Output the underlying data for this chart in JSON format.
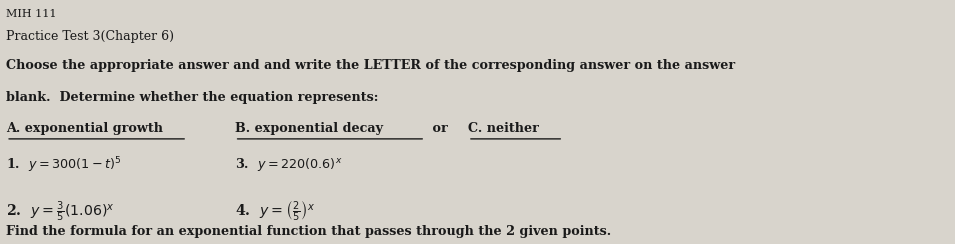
{
  "background_color": "#d8d4cc",
  "title_line": "MIH 111",
  "line1": "Practice Test 3(Chapter 6)",
  "line2a": "Choose the appropriate answer and and write the LETTER of the corresponding answer on the answer",
  "line2b": "blank.  Determine whether the equation represents:",
  "label_A": "A. exponential growth",
  "label_B": "B. exponential decay",
  "label_or": " or ",
  "label_C": "C. neither",
  "bottom_line": "Find the formula for an exponential function that passes through the 2 given points.",
  "text_color": "#1a1a1a",
  "font_size_body": 9.0,
  "font_size_bold": 9.2
}
